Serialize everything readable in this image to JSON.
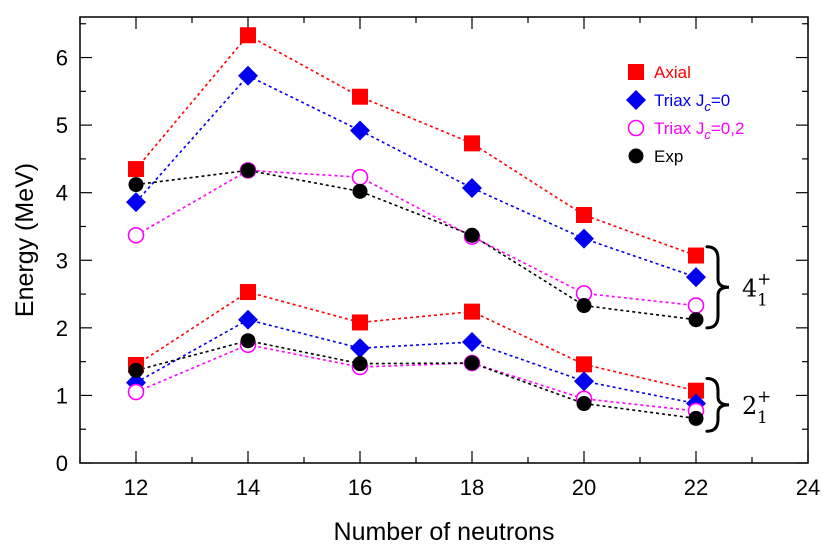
{
  "chart_data": {
    "type": "line",
    "title": "",
    "xlabel": "Number of neutrons",
    "ylabel": "Energy (MeV)",
    "xlim": [
      11,
      24
    ],
    "ylim": [
      0,
      6.6
    ],
    "xticks": [
      12,
      14,
      16,
      18,
      20,
      22,
      24
    ],
    "yticks": [
      0,
      1,
      2,
      3,
      4,
      5,
      6
    ],
    "x": [
      12,
      14,
      16,
      18,
      20,
      22
    ],
    "legend_position": "top-right",
    "series": [
      {
        "name": "Axial",
        "legend_label": "Axial",
        "legend_sub": "",
        "legend_suffix": "",
        "marker": "square",
        "color": "#ff0000",
        "group": "4_1+",
        "values": [
          4.35,
          6.33,
          5.42,
          4.73,
          3.67,
          3.07
        ]
      },
      {
        "name": "Triax Jc=0",
        "legend_label": "Triax J",
        "legend_sub": "c",
        "legend_suffix": "=0",
        "marker": "diamond",
        "color": "#0000ee",
        "group": "4_1+",
        "values": [
          3.86,
          5.73,
          4.92,
          4.07,
          3.32,
          2.75
        ]
      },
      {
        "name": "Triax Jc=0,2",
        "legend_label": "Triax J",
        "legend_sub": "c",
        "legend_suffix": "=0,2",
        "marker": "open-circle",
        "color": "#ff00ff",
        "group": "4_1+",
        "values": [
          3.37,
          4.33,
          4.23,
          3.35,
          2.51,
          2.33
        ]
      },
      {
        "name": "Exp",
        "legend_label": "Exp",
        "legend_sub": "",
        "legend_suffix": "",
        "marker": "circle",
        "color": "#000000",
        "group": "4_1+",
        "values": [
          4.12,
          4.33,
          4.02,
          3.37,
          2.33,
          2.12
        ]
      },
      {
        "name": "Axial",
        "marker": "square",
        "color": "#ff0000",
        "group": "2_1+",
        "values": [
          1.45,
          2.53,
          2.08,
          2.24,
          1.46,
          1.07
        ]
      },
      {
        "name": "Triax Jc=0",
        "marker": "diamond",
        "color": "#0000ee",
        "group": "2_1+",
        "values": [
          1.19,
          2.12,
          1.7,
          1.79,
          1.21,
          0.88
        ]
      },
      {
        "name": "Triax Jc=0,2",
        "marker": "open-circle",
        "color": "#ff00ff",
        "group": "2_1+",
        "values": [
          1.05,
          1.75,
          1.42,
          1.48,
          0.95,
          0.77
        ]
      },
      {
        "name": "Exp",
        "marker": "circle",
        "color": "#000000",
        "group": "2_1+",
        "values": [
          1.37,
          1.81,
          1.47,
          1.48,
          0.88,
          0.66
        ]
      }
    ],
    "annotations": [
      {
        "name": "4_1+",
        "base": "4",
        "sup": "+",
        "sub": "1",
        "range": [
          2.0,
          3.2
        ]
      },
      {
        "name": "2_1+",
        "base": "2",
        "sup": "+",
        "sub": "1",
        "range": [
          0.47,
          1.25
        ]
      }
    ]
  }
}
